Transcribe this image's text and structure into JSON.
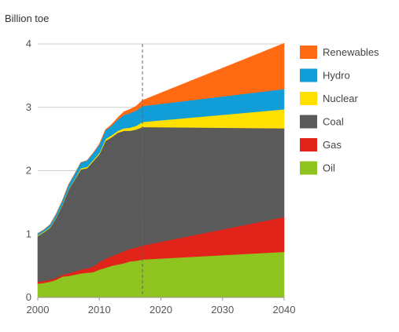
{
  "chart_data": {
    "type": "area",
    "stacked": true,
    "ylabel": "Billion toe",
    "xlim": [
      2000,
      2040
    ],
    "ylim": [
      0,
      4
    ],
    "xticks": [
      2000,
      2010,
      2020,
      2030,
      2040
    ],
    "yticks": [
      0,
      1,
      2,
      3,
      4
    ],
    "grid": "horizontal",
    "legend_position": "right",
    "projection_start": 2017,
    "x": [
      2000,
      2001,
      2002,
      2003,
      2004,
      2005,
      2006,
      2007,
      2008,
      2009,
      2010,
      2011,
      2012,
      2013,
      2014,
      2015,
      2016,
      2017,
      2040
    ],
    "series": [
      {
        "name": "Oil",
        "color": "#8fc31f",
        "values": [
          0.22,
          0.23,
          0.25,
          0.28,
          0.33,
          0.34,
          0.36,
          0.38,
          0.39,
          0.4,
          0.44,
          0.47,
          0.5,
          0.52,
          0.54,
          0.57,
          0.58,
          0.6,
          0.72
        ]
      },
      {
        "name": "Gas",
        "color": "#e2231a",
        "values": [
          0.03,
          0.03,
          0.03,
          0.03,
          0.03,
          0.04,
          0.05,
          0.06,
          0.07,
          0.09,
          0.12,
          0.14,
          0.15,
          0.17,
          0.19,
          0.2,
          0.21,
          0.22,
          0.55
        ]
      },
      {
        "name": "Coal",
        "color": "#5a5a5a",
        "values": [
          0.72,
          0.77,
          0.82,
          0.95,
          1.1,
          1.32,
          1.45,
          1.58,
          1.58,
          1.66,
          1.7,
          1.86,
          1.88,
          1.91,
          1.9,
          1.86,
          1.86,
          1.87,
          1.4
        ]
      },
      {
        "name": "Nuclear",
        "color": "#ffe000",
        "values": [
          0.01,
          0.01,
          0.01,
          0.01,
          0.01,
          0.01,
          0.01,
          0.02,
          0.02,
          0.02,
          0.02,
          0.03,
          0.03,
          0.03,
          0.04,
          0.05,
          0.06,
          0.08,
          0.3
        ]
      },
      {
        "name": "Hydro",
        "color": "#119dd8",
        "values": [
          0.03,
          0.03,
          0.04,
          0.05,
          0.06,
          0.07,
          0.08,
          0.09,
          0.1,
          0.11,
          0.13,
          0.14,
          0.15,
          0.18,
          0.21,
          0.23,
          0.24,
          0.25,
          0.32
        ]
      },
      {
        "name": "Renewables",
        "color": "#ff6a13",
        "values": [
          0.0,
          0.0,
          0.0,
          0.0,
          0.0,
          0.0,
          0.0,
          0.0,
          0.0,
          0.0,
          0.01,
          0.01,
          0.02,
          0.03,
          0.05,
          0.06,
          0.07,
          0.09,
          0.72
        ]
      }
    ]
  }
}
